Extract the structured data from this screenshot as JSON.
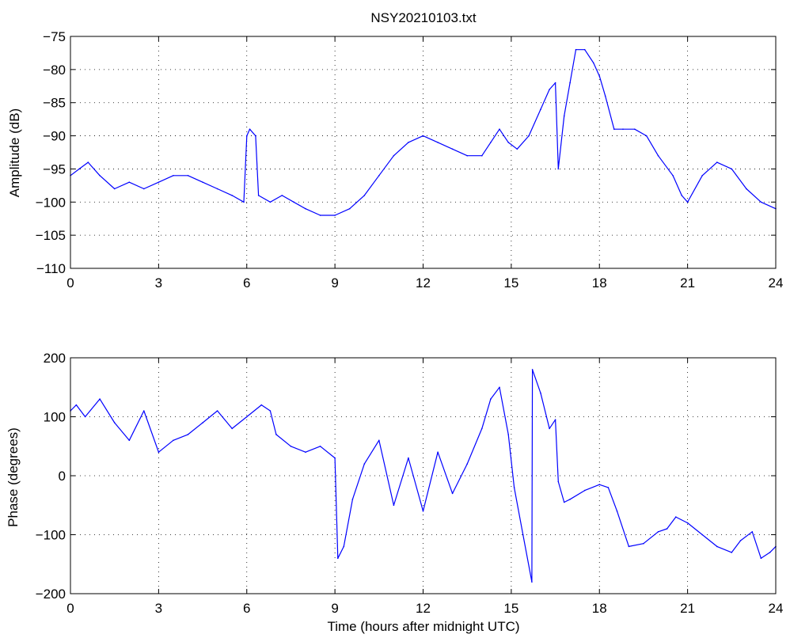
{
  "figure": {
    "background": "#ffffff",
    "line_color": "#0000ff",
    "axis_color": "#000000"
  },
  "chart_data": [
    {
      "type": "line",
      "title": "NSY20210103.txt",
      "xlabel": "",
      "ylabel": "Amplitude (dB)",
      "xlim": [
        0,
        24
      ],
      "ylim": [
        -110,
        -75
      ],
      "x_ticks": [
        "0",
        "3",
        "6",
        "9",
        "12",
        "15",
        "18",
        "21",
        "24"
      ],
      "y_ticks": [
        "−110",
        "−105",
        "−100",
        "−95",
        "−90",
        "−85",
        "−80",
        "−75"
      ],
      "grid": true,
      "series": [
        {
          "color": "#0000ff",
          "x": [
            0,
            0.3,
            0.6,
            1,
            1.5,
            2,
            2.5,
            3,
            3.5,
            4,
            4.5,
            5,
            5.5,
            5.9,
            6.0,
            6.1,
            6.3,
            6.4,
            6.8,
            7.2,
            7.6,
            8,
            8.5,
            9,
            9.5,
            10,
            10.5,
            11,
            11.5,
            12,
            12.5,
            13,
            13.5,
            14,
            14.3,
            14.6,
            14.9,
            15.2,
            15.6,
            16,
            16.3,
            16.5,
            16.6,
            16.8,
            17,
            17.2,
            17.5,
            17.8,
            18,
            18.2,
            18.5,
            18.8,
            19.2,
            19.6,
            20,
            20.5,
            20.8,
            21,
            21.5,
            22,
            22.5,
            23,
            23.5,
            24
          ],
          "values": [
            -96,
            -95,
            -94,
            -96,
            -98,
            -97,
            -98,
            -97,
            -96,
            -96,
            -97,
            -98,
            -99,
            -100,
            -90,
            -89,
            -90,
            -99,
            -100,
            -99,
            -100,
            -101,
            -102,
            -102,
            -101,
            -99,
            -96,
            -93,
            -91,
            -90,
            -91,
            -92,
            -93,
            -93,
            -91,
            -89,
            -91,
            -92,
            -90,
            -86,
            -83,
            -82,
            -95,
            -87,
            -82,
            -77,
            -77,
            -79,
            -81,
            -84,
            -89,
            -89,
            -89,
            -90,
            -93,
            -96,
            -99,
            -100,
            -96,
            -94,
            -95,
            -98,
            -100,
            -101
          ]
        }
      ]
    },
    {
      "type": "line",
      "title": "",
      "xlabel": "Time (hours after midnight UTC)",
      "ylabel": "Phase (degrees)",
      "xlim": [
        0,
        24
      ],
      "ylim": [
        -200,
        200
      ],
      "x_ticks": [
        "0",
        "3",
        "6",
        "9",
        "12",
        "15",
        "18",
        "21",
        "24"
      ],
      "y_ticks": [
        "−200",
        "−100",
        "0",
        "100",
        "200"
      ],
      "grid": true,
      "series": [
        {
          "color": "#0000ff",
          "x": [
            0,
            0.2,
            0.5,
            1,
            1.5,
            2,
            2.5,
            3,
            3.5,
            4,
            4.5,
            5,
            5.5,
            6,
            6.5,
            6.8,
            7,
            7.5,
            8,
            8.5,
            9,
            9.1,
            9.3,
            9.6,
            10,
            10.5,
            11,
            11.5,
            12,
            12.5,
            13,
            13.5,
            14,
            14.3,
            14.6,
            14.9,
            15.1,
            15.4,
            15.7,
            15.72,
            16,
            16.3,
            16.5,
            16.6,
            16.8,
            17,
            17.5,
            18,
            18.3,
            18.6,
            19,
            19.5,
            20,
            20.3,
            20.6,
            21,
            21.5,
            22,
            22.5,
            22.8,
            23.2,
            23.5,
            23.8,
            24
          ],
          "values": [
            110,
            120,
            100,
            130,
            90,
            60,
            110,
            40,
            60,
            70,
            90,
            110,
            80,
            100,
            120,
            110,
            70,
            50,
            40,
            50,
            30,
            -140,
            -120,
            -40,
            20,
            60,
            -50,
            30,
            -60,
            40,
            -30,
            20,
            80,
            130,
            150,
            70,
            -20,
            -100,
            -180,
            180,
            140,
            80,
            95,
            -10,
            -45,
            -40,
            -25,
            -15,
            -20,
            -60,
            -120,
            -115,
            -95,
            -90,
            -70,
            -80,
            -100,
            -120,
            -130,
            -110,
            -95,
            -140,
            -130,
            -120
          ]
        }
      ]
    }
  ]
}
